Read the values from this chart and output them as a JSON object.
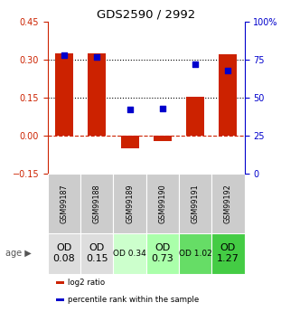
{
  "title": "GDS2590 / 2992",
  "samples": [
    "GSM99187",
    "GSM99188",
    "GSM99189",
    "GSM99190",
    "GSM99191",
    "GSM99192"
  ],
  "log2_ratio": [
    0.325,
    0.325,
    -0.05,
    -0.02,
    0.155,
    0.32
  ],
  "percentile_rank_pct": [
    78,
    77,
    42,
    43,
    72,
    68
  ],
  "bar_color": "#cc2200",
  "dot_color": "#0000cc",
  "ylim_left": [
    -0.15,
    0.45
  ],
  "ylim_right": [
    0,
    100
  ],
  "yticks_left": [
    -0.15,
    0.0,
    0.15,
    0.3,
    0.45
  ],
  "yticks_right": [
    0,
    25,
    50,
    75,
    100
  ],
  "hlines": [
    0.0,
    0.15,
    0.3
  ],
  "hline_styles": [
    "--",
    ":",
    ":"
  ],
  "hline_colors": [
    "#cc2200",
    "#000000",
    "#000000"
  ],
  "age_labels": [
    "OD\n0.08",
    "OD\n0.15",
    "OD 0.34",
    "OD\n0.73",
    "OD 1.02",
    "OD\n1.27"
  ],
  "age_bg_colors": [
    "#dddddd",
    "#dddddd",
    "#ccffcc",
    "#aaffaa",
    "#66dd66",
    "#44cc44"
  ],
  "age_label_fontsize": [
    8,
    8,
    6.5,
    8,
    6.5,
    8
  ],
  "sample_bg_color": "#cccccc",
  "legend_items": [
    {
      "color": "#cc2200",
      "label": "log2 ratio"
    },
    {
      "color": "#0000cc",
      "label": "percentile rank within the sample"
    }
  ],
  "bar_width": 0.55
}
